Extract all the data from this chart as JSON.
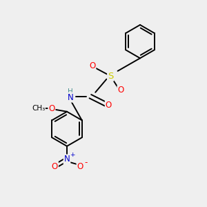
{
  "background_color": "#efefef",
  "bond_color": "#000000",
  "atom_colors": {
    "O": "#ff0000",
    "N": "#0000cc",
    "S": "#cccc00",
    "H": "#4a9090",
    "C": "#000000"
  },
  "figsize": [
    3.0,
    3.0
  ],
  "dpi": 100,
  "bond_lw": 1.4,
  "font_size": 8.5
}
